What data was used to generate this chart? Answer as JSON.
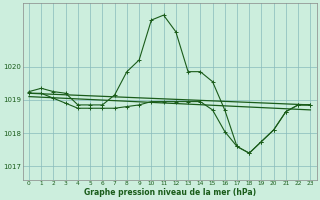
{
  "bg_color": "#cceedd",
  "grid_color_major": "#88bbbb",
  "line_color": "#1a5c1a",
  "xlabel": "Graphe pression niveau de la mer (hPa)",
  "ylim": [
    1016.6,
    1021.9
  ],
  "yticks": [
    1017,
    1018,
    1019,
    1020
  ],
  "xticks": [
    0,
    1,
    2,
    3,
    4,
    5,
    6,
    7,
    8,
    9,
    10,
    11,
    12,
    13,
    14,
    15,
    16,
    17,
    18,
    19,
    20,
    21,
    22,
    23
  ],
  "line1_x": [
    0,
    1,
    2,
    3,
    4,
    5,
    6,
    7,
    8,
    9,
    10,
    11,
    12,
    13,
    14,
    15,
    16,
    17,
    18,
    19,
    20,
    21,
    22,
    23
  ],
  "line1_y": [
    1019.25,
    1019.35,
    1019.25,
    1019.2,
    1018.85,
    1018.85,
    1018.85,
    1019.15,
    1019.85,
    1020.2,
    1021.4,
    1021.55,
    1021.05,
    1019.85,
    1019.85,
    1019.55,
    1018.7,
    1017.6,
    1017.4,
    1017.75,
    1018.1,
    1018.65,
    1018.85,
    1018.85
  ],
  "line2_x": [
    0,
    1,
    2,
    3,
    4,
    5,
    6,
    7,
    8,
    9,
    10,
    11,
    12,
    13,
    14,
    15,
    16,
    17,
    18,
    19,
    20,
    21,
    22,
    23
  ],
  "line2_y": [
    1019.2,
    1019.2,
    1019.05,
    1018.9,
    1018.75,
    1018.75,
    1018.75,
    1018.75,
    1018.8,
    1018.85,
    1018.95,
    1018.95,
    1018.95,
    1018.95,
    1018.95,
    1018.7,
    1018.05,
    1017.6,
    1017.4,
    1017.75,
    1018.1,
    1018.65,
    1018.85,
    1018.85
  ],
  "line3_x": [
    0,
    23
  ],
  "line3_y": [
    1019.2,
    1018.85
  ],
  "line4_x": [
    0,
    23
  ],
  "line4_y": [
    1019.1,
    1018.7
  ]
}
